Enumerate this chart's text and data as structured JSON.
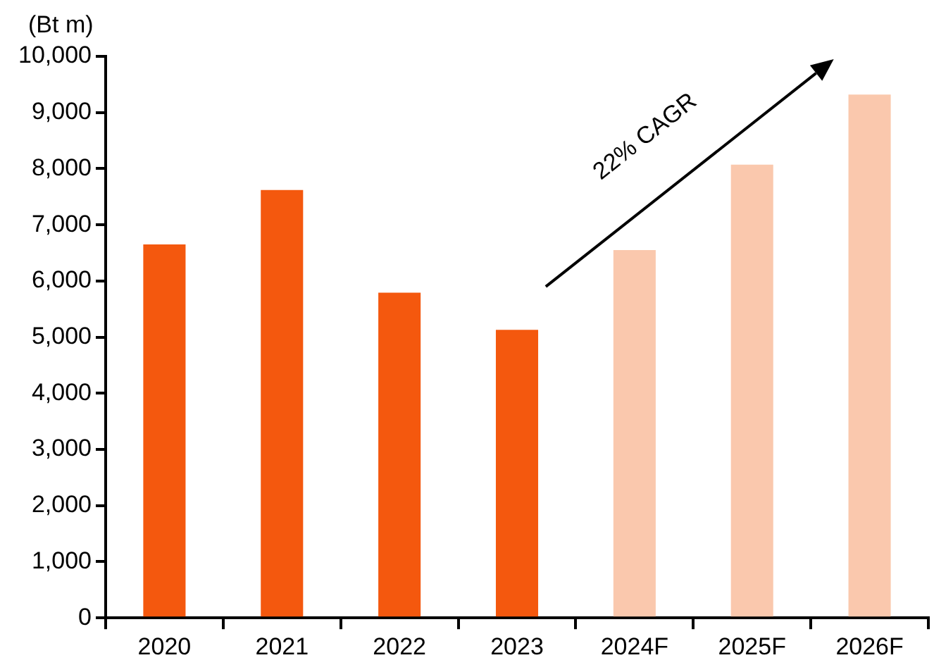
{
  "chart_data": {
    "type": "bar",
    "ylabel": "(Bt m)",
    "categories": [
      "2020",
      "2021",
      "2022",
      "2023",
      "2024F",
      "2025F",
      "2026F"
    ],
    "values": [
      6650,
      7620,
      5790,
      5130,
      6550,
      8070,
      9320
    ],
    "colors": [
      "#f4580e",
      "#f4580e",
      "#f4580e",
      "#f4580e",
      "#fac8ad",
      "#fac8ad",
      "#fac8ad"
    ],
    "ylim": [
      0,
      10000
    ],
    "yticks": [
      0,
      {
        "value": 1000,
        "label": "1,000"
      },
      {
        "value": 2000,
        "label": "2,000"
      },
      {
        "value": 3000,
        "label": "3,000"
      },
      {
        "value": 4000,
        "label": "4,000"
      },
      {
        "value": 5000,
        "label": "5,000"
      },
      {
        "value": 6000,
        "label": "6,000"
      },
      {
        "value": 7000,
        "label": "7,000"
      },
      {
        "value": 8000,
        "label": "8,000"
      },
      {
        "value": 9000,
        "label": "9,000"
      },
      {
        "value": 10000,
        "label": "10,000"
      }
    ],
    "grid": false,
    "legend": false,
    "annotations": [
      "22% CAGR"
    ]
  }
}
